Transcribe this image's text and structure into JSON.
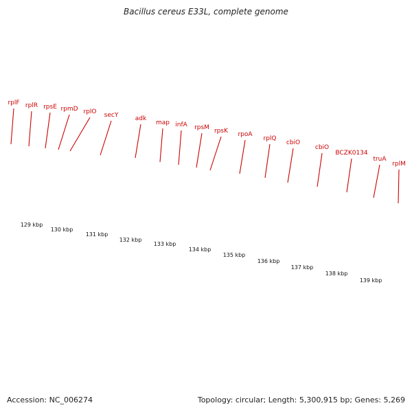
{
  "title": "Bacillus cereus E33L, complete genome",
  "footer": {
    "accession": "Accession: NC_006274",
    "summary": "Topology: circular; Length: 5,300,915 bp; Genes: 5,269"
  },
  "colors": {
    "gene_red": "#ee1111",
    "gene_pink": "#e88a8a",
    "label_red": "#cc0000",
    "tick_green": "#228B22",
    "backbone": "#888888",
    "feature_green": "#a8e83a",
    "feature_cyan": "#21b4e0",
    "feature_orange": "#f08a10",
    "feature_purple": "#4e3e8c"
  },
  "scale_labels": [
    "129 kbp",
    "130 kbp",
    "131 kbp",
    "132 kbp",
    "133 kbp",
    "134 kbp",
    "135 kbp",
    "136 kbp",
    "137 kbp",
    "138 kbp",
    "139 kbp"
  ],
  "gene_labels": [
    "rplF",
    "rplR",
    "rpsE",
    "rpmD",
    "rplO",
    "secY",
    "adk",
    "map",
    "infA",
    "rpsM",
    "rpsK",
    "rpoA",
    "rplQ",
    "cbiO",
    "cbiO",
    "BCZK0134",
    "truA",
    "rplM"
  ]
}
